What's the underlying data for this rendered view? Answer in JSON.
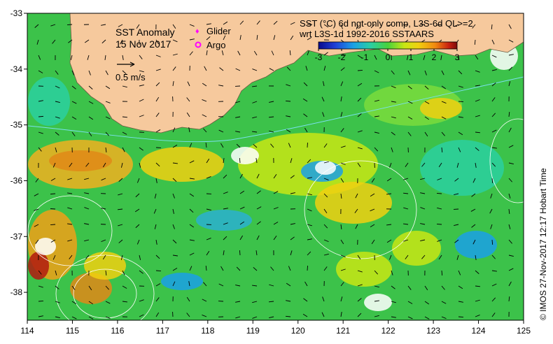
{
  "map": {
    "title_line1": "SST Anomaly",
    "title_line2": "15 Nov 2017",
    "legend_glider": "Glider",
    "legend_argo": "Argo",
    "vector_scale_label": "0.5 m/s",
    "product_line1": "SST (°C) 6d ngt-only comp, L3S-6d QL>=2",
    "product_line2": "wrt L3S-1d 1992-2016 SSTAARS",
    "credit": "© IMOS 27-Nov-2017 12:17 Hobart Time",
    "colors": {
      "land": "#f6c99d",
      "glider": "#ff00ff",
      "argo": "#ff00ff",
      "background_ocean": "#3cc24a"
    }
  },
  "colorbar": {
    "ticks": [
      "-3",
      "-2",
      "-1",
      "0",
      "1",
      "2",
      "3"
    ],
    "colors": [
      "#0a0a8c",
      "#1f3fd6",
      "#1aa0e6",
      "#2ad0a0",
      "#48d23c",
      "#c8e614",
      "#f0d010",
      "#f08a10",
      "#c82010",
      "#7a0a0a"
    ]
  },
  "axes": {
    "x_ticks": [
      "114",
      "115",
      "116",
      "117",
      "118",
      "119",
      "120",
      "121",
      "122",
      "123",
      "124",
      "125"
    ],
    "y_ticks": [
      "-33",
      "-34",
      "-35",
      "-36",
      "-37",
      "-38"
    ],
    "x_range": [
      114,
      125
    ],
    "y_range": [
      -38.5,
      -33
    ]
  }
}
